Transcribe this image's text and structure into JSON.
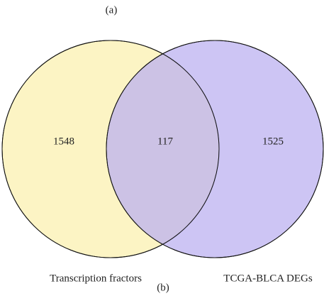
{
  "chart_data": {
    "type": "venn",
    "panel_label": "(a)",
    "caption": "(b)",
    "sets": [
      {
        "name": "Transcription fractors",
        "color": "#fcf4c4"
      },
      {
        "name": "TCGA-BLCA DEGs",
        "color": "#bcb1f0"
      }
    ],
    "regions": [
      "only_0",
      "both",
      "only_1"
    ],
    "values": [
      1548,
      117,
      1525
    ]
  }
}
